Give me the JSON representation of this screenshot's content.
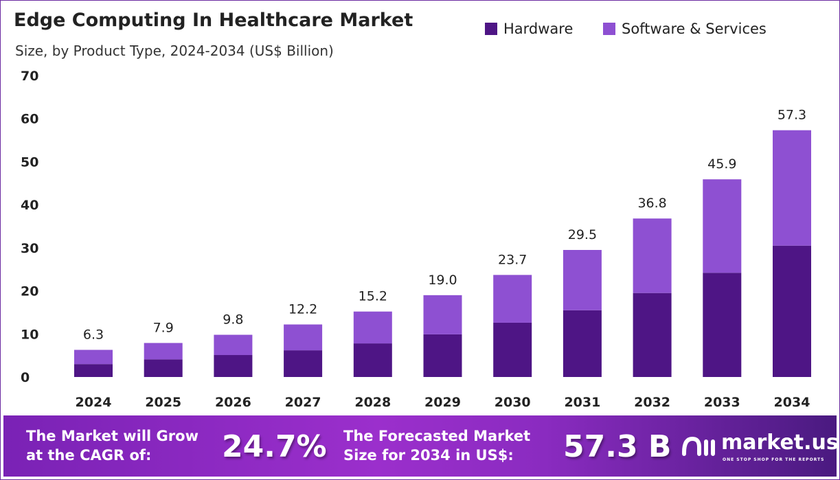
{
  "chart_data": {
    "type": "stacked-bar",
    "title": "Edge Computing In Healthcare Market",
    "subtitle": "Size, by Product Type, 2024-2034 (US$ Billion)",
    "categories": [
      "2024",
      "2025",
      "2026",
      "2027",
      "2028",
      "2029",
      "2030",
      "2031",
      "2032",
      "2033",
      "2034"
    ],
    "series": [
      {
        "name": "Hardware",
        "color": "#4e1585",
        "values": [
          3.0,
          4.1,
          5.1,
          6.2,
          7.8,
          9.9,
          12.6,
          15.5,
          19.5,
          24.2,
          30.5
        ]
      },
      {
        "name": "Software & Services",
        "color": "#8e50d2",
        "values": [
          3.3,
          3.8,
          4.7,
          6.0,
          7.4,
          9.1,
          11.1,
          14.0,
          17.3,
          21.7,
          26.8
        ]
      }
    ],
    "totals": [
      "6.3",
      "7.9",
      "9.8",
      "12.2",
      "15.2",
      "19.0",
      "23.7",
      "29.5",
      "36.8",
      "45.9",
      "57.3"
    ],
    "ylim": [
      0,
      70
    ],
    "yticks": [
      "0",
      "10",
      "20",
      "30",
      "40",
      "50",
      "60",
      "70"
    ],
    "grid": false,
    "legend": "top-right"
  },
  "banner": {
    "cagr_label_1": "The Market will Grow",
    "cagr_label_2": "at the CAGR of:",
    "cagr_value": "24.7%",
    "forecast_label_1": "The Forecasted Market",
    "forecast_label_2": "Size for 2034 in US$:",
    "forecast_value": "57.3 B",
    "logo_text": "market.us",
    "logo_tagline": "ONE STOP SHOP FOR THE REPORTS"
  }
}
